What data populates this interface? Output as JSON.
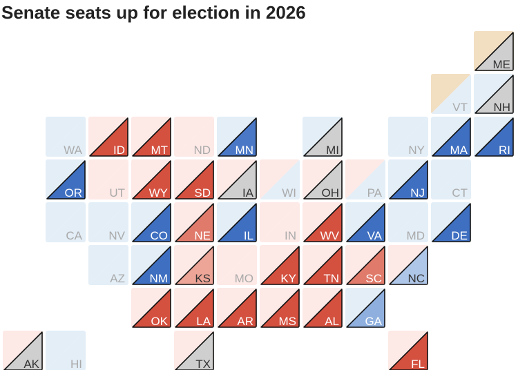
{
  "title": "Senate seats up for election in 2026",
  "tiles": [
    {
      "label": "ME",
      "seat1": "#f2dfc2",
      "seat2": "#cfcfcf",
      "up": true
    },
    {
      "label": "VT",
      "seat1": "#f2dfc2",
      "seat2": "#e3eef7",
      "up": false
    },
    {
      "label": "NH",
      "seat1": "#e3eef7",
      "seat2": "#cfcfcf",
      "up": true
    },
    {
      "label": "WA",
      "seat1": "#e3eef7",
      "seat2": "#e3eef7",
      "up": false
    },
    {
      "label": "ID",
      "seat1": "#fde9e6",
      "seat2": "#d4503f",
      "up": true
    },
    {
      "label": "MT",
      "seat1": "#fde9e6",
      "seat2": "#d4503f",
      "up": true
    },
    {
      "label": "ND",
      "seat1": "#fde9e6",
      "seat2": "#fde9e6",
      "up": false
    },
    {
      "label": "MN",
      "seat1": "#e3eef7",
      "seat2": "#4a78c6",
      "up": true
    },
    {
      "label": "MI",
      "seat1": "#e3eef7",
      "seat2": "#cfcfcf",
      "up": true
    },
    {
      "label": "NY",
      "seat1": "#e3eef7",
      "seat2": "#e3eef7",
      "up": false
    },
    {
      "label": "MA",
      "seat1": "#e3eef7",
      "seat2": "#3f6fc0",
      "up": true
    },
    {
      "label": "RI",
      "seat1": "#e3eef7",
      "seat2": "#3f6fc0",
      "up": true
    },
    {
      "label": "OR",
      "seat1": "#e3eef7",
      "seat2": "#3f6fc0",
      "up": true
    },
    {
      "label": "UT",
      "seat1": "#fde9e6",
      "seat2": "#fde9e6",
      "up": false
    },
    {
      "label": "WY",
      "seat1": "#fde9e6",
      "seat2": "#d4503f",
      "up": true
    },
    {
      "label": "SD",
      "seat1": "#fde9e6",
      "seat2": "#d4503f",
      "up": true
    },
    {
      "label": "IA",
      "seat1": "#fde9e6",
      "seat2": "#cfcfcf",
      "up": true
    },
    {
      "label": "WI",
      "seat1": "#fde9e6",
      "seat2": "#e3eef7",
      "up": false
    },
    {
      "label": "OH",
      "seat1": "#fde9e6",
      "seat2": "#cfcfcf",
      "up": true
    },
    {
      "label": "PA",
      "seat1": "#fde9e6",
      "seat2": "#e3eef7",
      "up": false
    },
    {
      "label": "NJ",
      "seat1": "#e3eef7",
      "seat2": "#3f6fc0",
      "up": true
    },
    {
      "label": "CT",
      "seat1": "#e3eef7",
      "seat2": "#e3eef7",
      "up": false
    },
    {
      "label": "CA",
      "seat1": "#e3eef7",
      "seat2": "#e3eef7",
      "up": false
    },
    {
      "label": "NV",
      "seat1": "#e3eef7",
      "seat2": "#e3eef7",
      "up": false
    },
    {
      "label": "CO",
      "seat1": "#e3eef7",
      "seat2": "#3f6fc0",
      "up": true
    },
    {
      "label": "NE",
      "seat1": "#fde9e6",
      "seat2": "#e07a6a",
      "up": true
    },
    {
      "label": "IL",
      "seat1": "#e3eef7",
      "seat2": "#3f6fc0",
      "up": true
    },
    {
      "label": "IN",
      "seat1": "#fde9e6",
      "seat2": "#fde9e6",
      "up": false
    },
    {
      "label": "WV",
      "seat1": "#fde9e6",
      "seat2": "#d4503f",
      "up": true
    },
    {
      "label": "VA",
      "seat1": "#e3eef7",
      "seat2": "#3f6fc0",
      "up": true
    },
    {
      "label": "MD",
      "seat1": "#e3eef7",
      "seat2": "#e3eef7",
      "up": false
    },
    {
      "label": "DE",
      "seat1": "#e3eef7",
      "seat2": "#3f6fc0",
      "up": true
    },
    {
      "label": "AZ",
      "seat1": "#e3eef7",
      "seat2": "#e3eef7",
      "up": false
    },
    {
      "label": "NM",
      "seat1": "#e3eef7",
      "seat2": "#3f6fc0",
      "up": true
    },
    {
      "label": "KS",
      "seat1": "#fde9e6",
      "seat2": "#eda597",
      "up": true
    },
    {
      "label": "MO",
      "seat1": "#fde9e6",
      "seat2": "#fde9e6",
      "up": false
    },
    {
      "label": "KY",
      "seat1": "#fde9e6",
      "seat2": "#d4503f",
      "up": true
    },
    {
      "label": "TN",
      "seat1": "#fde9e6",
      "seat2": "#d4503f",
      "up": true
    },
    {
      "label": "SC",
      "seat1": "#fde9e6",
      "seat2": "#e07a6a",
      "up": true
    },
    {
      "label": "NC",
      "seat1": "#fde9e6",
      "seat2": "#aec6e8",
      "up": true
    },
    {
      "label": "OK",
      "seat1": "#fde9e6",
      "seat2": "#d4503f",
      "up": true
    },
    {
      "label": "LA",
      "seat1": "#fde9e6",
      "seat2": "#d4503f",
      "up": true
    },
    {
      "label": "AR",
      "seat1": "#fde9e6",
      "seat2": "#d4503f",
      "up": true
    },
    {
      "label": "MS",
      "seat1": "#fde9e6",
      "seat2": "#d4503f",
      "up": true
    },
    {
      "label": "AL",
      "seat1": "#fde9e6",
      "seat2": "#d4503f",
      "up": true
    },
    {
      "label": "GA",
      "seat1": "#e3eef7",
      "seat2": "#8fb0de",
      "up": true
    },
    {
      "label": "AK",
      "seat1": "#fde9e6",
      "seat2": "#cfcfcf",
      "up": true
    },
    {
      "label": "HI",
      "seat1": "#e3eef7",
      "seat2": "#e3eef7",
      "up": false
    },
    {
      "label": "TX",
      "seat1": "#fde9e6",
      "seat2": "#cfcfcf",
      "up": true
    },
    {
      "label": "FL",
      "seat1": "#fde9e6",
      "seat2": "#d4503f",
      "up": true
    }
  ]
}
